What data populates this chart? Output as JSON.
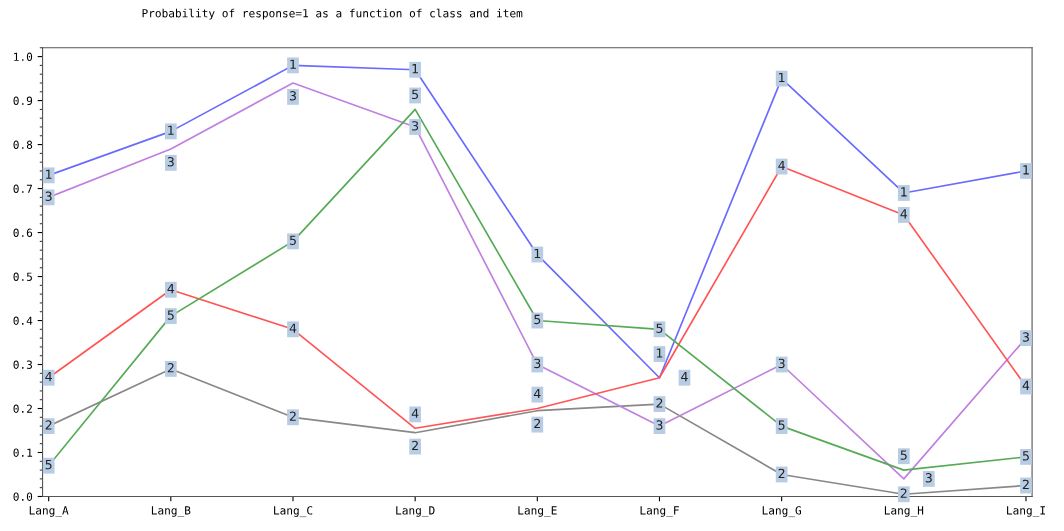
{
  "chart_data": {
    "type": "line",
    "title": "Probability of response=1 as a function of class and item",
    "categories": [
      "Lang_A",
      "Lang_B",
      "Lang_C",
      "Lang_D",
      "Lang_E",
      "Lang_F",
      "Lang_G",
      "Lang_H",
      "Lang_I"
    ],
    "ylim": [
      0,
      1.02
    ],
    "yticks": [
      {
        "value": 0,
        "label": "0.0"
      },
      0.1,
      0.2,
      0.3,
      0.4,
      0.5,
      0.6,
      0.7,
      0.8,
      0.9,
      {
        "value": 1,
        "label": "1.0"
      }
    ],
    "grid": false,
    "legend": false,
    "marker": "square",
    "line_style": "solid",
    "series": [
      {
        "name": "1",
        "color": "#6a6aff",
        "values": [
          0.73,
          0.83,
          0.98,
          0.97,
          0.55,
          0.27,
          0.95,
          0.69,
          0.74
        ]
      },
      {
        "name": "2",
        "color": "#888888",
        "values": [
          0.16,
          0.29,
          0.18,
          0.145,
          0.195,
          0.21,
          0.05,
          0.005,
          0.025
        ]
      },
      {
        "name": "3",
        "color": "#c080e0",
        "values": [
          0.68,
          0.79,
          0.94,
          0.84,
          0.3,
          0.16,
          0.3,
          0.04,
          0.36
        ]
      },
      {
        "name": "4",
        "color": "#ff5555",
        "values": [
          0.27,
          0.47,
          0.38,
          0.155,
          0.2,
          0.27,
          0.75,
          0.64,
          0.25
        ]
      },
      {
        "name": "5",
        "color": "#55aa55",
        "values": [
          0.07,
          0.41,
          0.58,
          0.88,
          0.4,
          0.38,
          0.16,
          0.06,
          0.09
        ]
      }
    ]
  }
}
